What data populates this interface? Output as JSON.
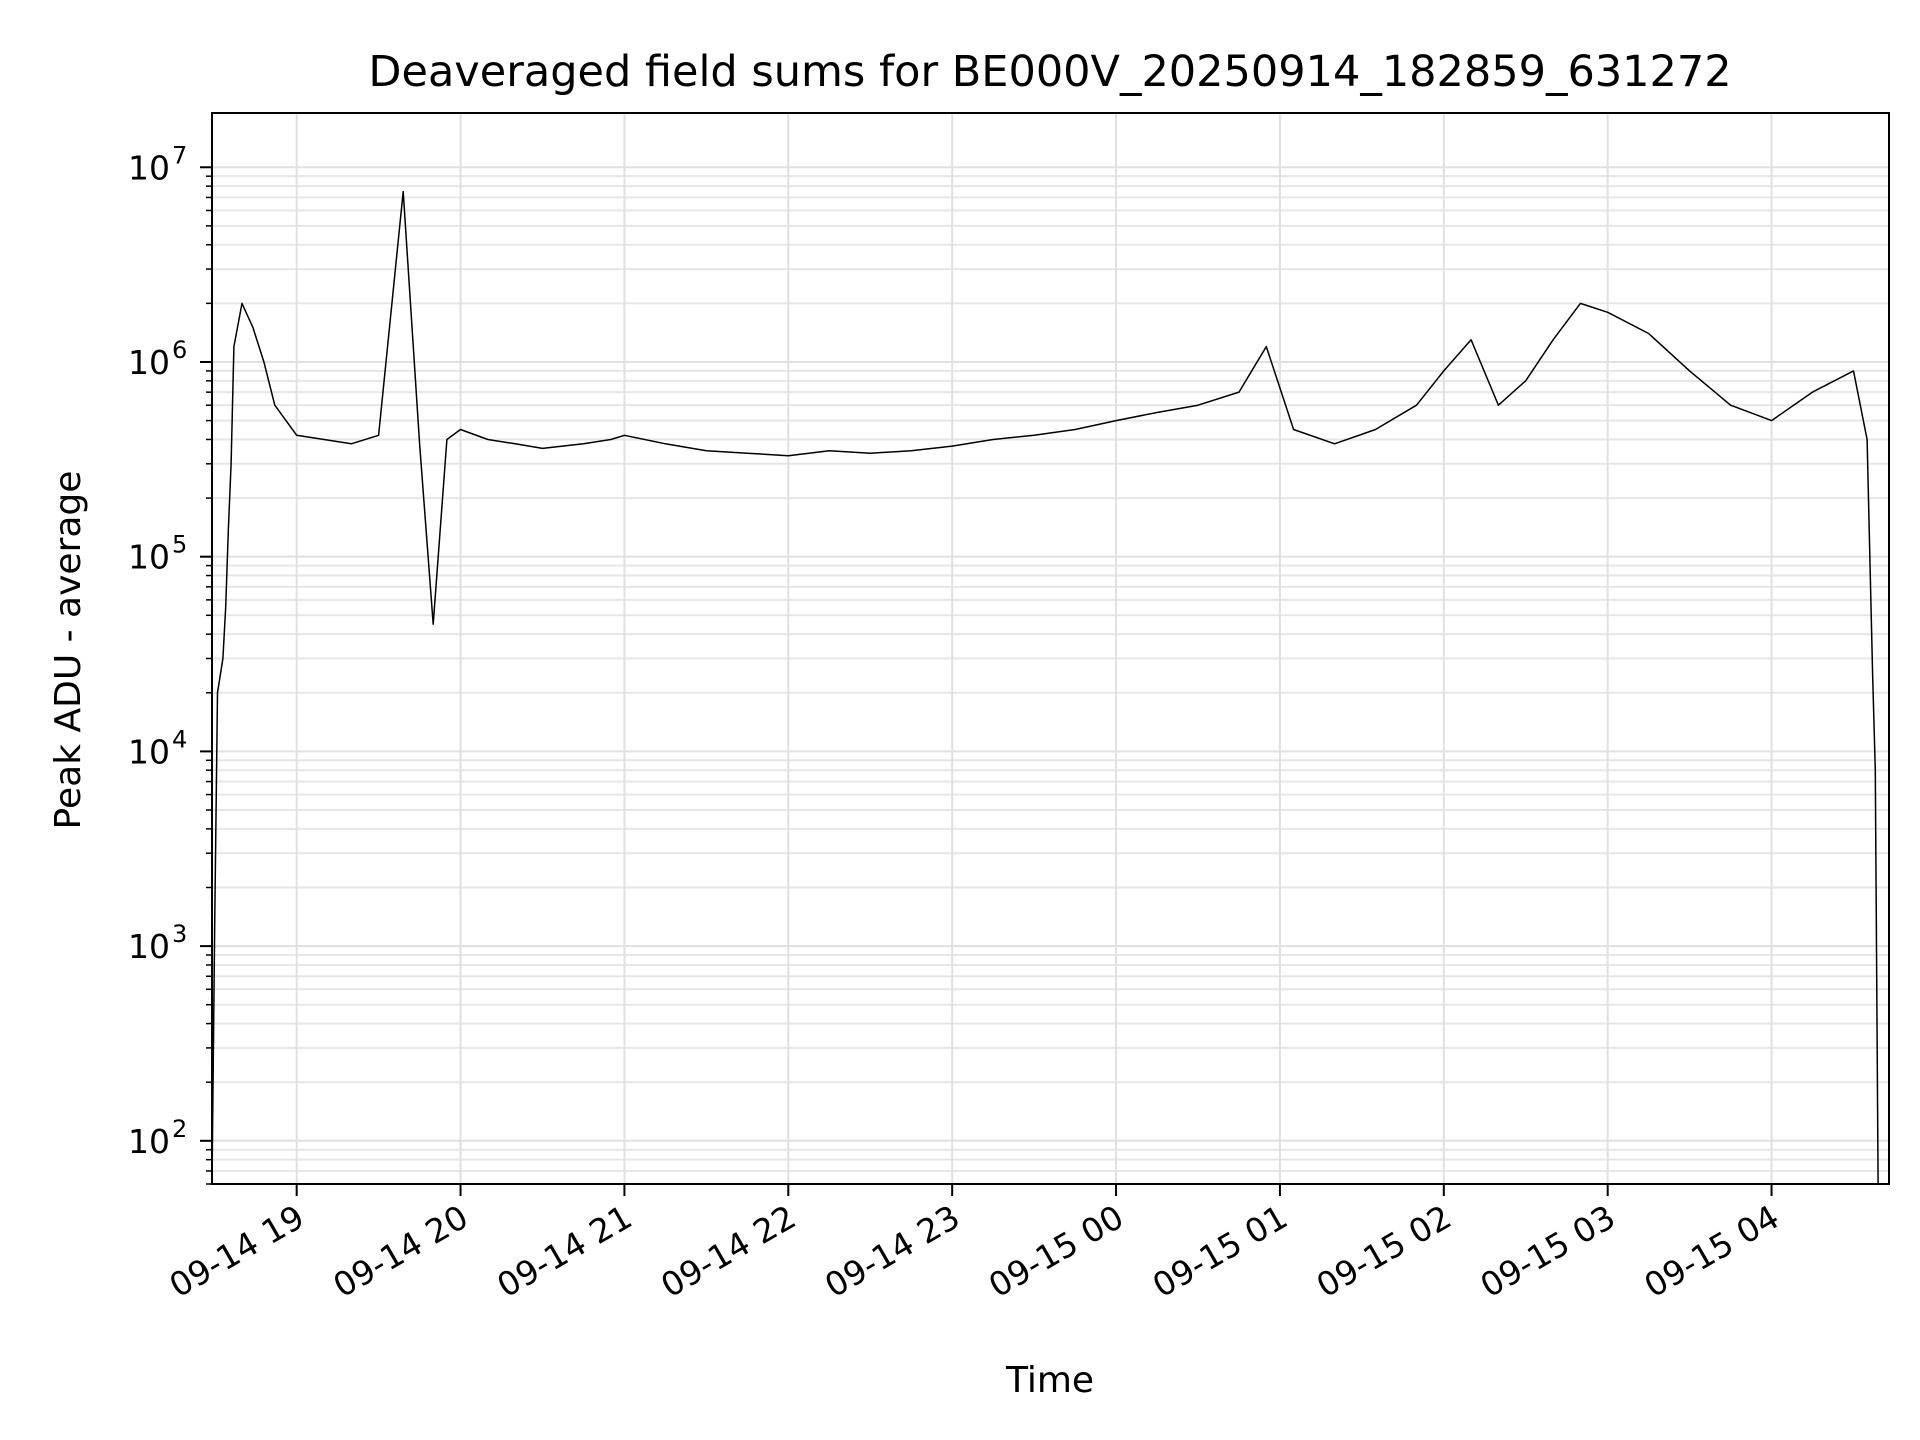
{
  "chart_data": {
    "type": "line",
    "title": "Deaveraged field sums for BE000V_20250914_182859_631272",
    "xlabel": "Time",
    "ylabel": "Peak ADU - average",
    "yscale": "log",
    "ylim": [
      60,
      19000000
    ],
    "xlim": [
      "2025-09-14 18:29",
      "2025-09-15 04:43"
    ],
    "grid": "major and minor",
    "x_ticks": [
      {
        "t": "2025-09-14 19:00",
        "label": "09-14 19"
      },
      {
        "t": "2025-09-14 20:00",
        "label": "09-14 20"
      },
      {
        "t": "2025-09-14 21:00",
        "label": "09-14 21"
      },
      {
        "t": "2025-09-14 22:00",
        "label": "09-14 22"
      },
      {
        "t": "2025-09-14 23:00",
        "label": "09-14 23"
      },
      {
        "t": "2025-09-15 00:00",
        "label": "09-15 00"
      },
      {
        "t": "2025-09-15 01:00",
        "label": "09-15 01"
      },
      {
        "t": "2025-09-15 02:00",
        "label": "09-15 02"
      },
      {
        "t": "2025-09-15 03:00",
        "label": "09-15 03"
      },
      {
        "t": "2025-09-15 04:00",
        "label": "09-15 04"
      }
    ],
    "y_ticks": [
      {
        "v": 100,
        "base": "10",
        "exp": "2"
      },
      {
        "v": 1000,
        "base": "10",
        "exp": "3"
      },
      {
        "v": 10000,
        "base": "10",
        "exp": "4"
      },
      {
        "v": 100000,
        "base": "10",
        "exp": "5"
      },
      {
        "v": 1000000,
        "base": "10",
        "exp": "6"
      },
      {
        "v": 10000000,
        "base": "10",
        "exp": "7"
      }
    ],
    "series": [
      {
        "color": "#000000",
        "points": [
          [
            "2025-09-14 18:29",
            60
          ],
          [
            "2025-09-14 18:30",
            1300
          ],
          [
            "2025-09-14 18:31",
            20000
          ],
          [
            "2025-09-14 18:33",
            30000
          ],
          [
            "2025-09-14 18:34",
            55000
          ],
          [
            "2025-09-14 18:35",
            140000
          ],
          [
            "2025-09-14 18:36",
            300000
          ],
          [
            "2025-09-14 18:37",
            1200000
          ],
          [
            "2025-09-14 18:40",
            2000000
          ],
          [
            "2025-09-14 18:44",
            1500000
          ],
          [
            "2025-09-14 18:48",
            1000000
          ],
          [
            "2025-09-14 18:52",
            600000
          ],
          [
            "2025-09-14 19:00",
            420000
          ],
          [
            "2025-09-14 19:10",
            400000
          ],
          [
            "2025-09-14 19:20",
            380000
          ],
          [
            "2025-09-14 19:30",
            420000
          ],
          [
            "2025-09-14 19:39",
            7500000
          ],
          [
            "2025-09-14 19:45",
            380000
          ],
          [
            "2025-09-14 19:50",
            45000
          ],
          [
            "2025-09-14 19:55",
            400000
          ],
          [
            "2025-09-14 20:00",
            450000
          ],
          [
            "2025-09-14 20:10",
            400000
          ],
          [
            "2025-09-14 20:20",
            380000
          ],
          [
            "2025-09-14 20:30",
            360000
          ],
          [
            "2025-09-14 20:45",
            380000
          ],
          [
            "2025-09-14 20:55",
            400000
          ],
          [
            "2025-09-14 21:00",
            420000
          ],
          [
            "2025-09-14 21:15",
            380000
          ],
          [
            "2025-09-14 21:30",
            350000
          ],
          [
            "2025-09-14 21:45",
            340000
          ],
          [
            "2025-09-14 22:00",
            330000
          ],
          [
            "2025-09-14 22:15",
            350000
          ],
          [
            "2025-09-14 22:30",
            340000
          ],
          [
            "2025-09-14 22:45",
            350000
          ],
          [
            "2025-09-14 23:00",
            370000
          ],
          [
            "2025-09-14 23:15",
            400000
          ],
          [
            "2025-09-14 23:30",
            420000
          ],
          [
            "2025-09-14 23:45",
            450000
          ],
          [
            "2025-09-15 00:00",
            500000
          ],
          [
            "2025-09-15 00:15",
            550000
          ],
          [
            "2025-09-15 00:30",
            600000
          ],
          [
            "2025-09-15 00:45",
            700000
          ],
          [
            "2025-09-15 00:55",
            1200000
          ],
          [
            "2025-09-15 01:05",
            450000
          ],
          [
            "2025-09-15 01:20",
            380000
          ],
          [
            "2025-09-15 01:35",
            450000
          ],
          [
            "2025-09-15 01:50",
            600000
          ],
          [
            "2025-09-15 02:00",
            900000
          ],
          [
            "2025-09-15 02:10",
            1300000
          ],
          [
            "2025-09-15 02:20",
            600000
          ],
          [
            "2025-09-15 02:30",
            800000
          ],
          [
            "2025-09-15 02:40",
            1300000
          ],
          [
            "2025-09-15 02:50",
            2000000
          ],
          [
            "2025-09-15 03:00",
            1800000
          ],
          [
            "2025-09-15 03:15",
            1400000
          ],
          [
            "2025-09-15 03:30",
            900000
          ],
          [
            "2025-09-15 03:45",
            600000
          ],
          [
            "2025-09-15 04:00",
            500000
          ],
          [
            "2025-09-15 04:15",
            700000
          ],
          [
            "2025-09-15 04:30",
            900000
          ],
          [
            "2025-09-15 04:35",
            400000
          ],
          [
            "2025-09-15 04:37",
            25000
          ],
          [
            "2025-09-15 04:38",
            8000
          ],
          [
            "2025-09-15 04:39",
            60
          ]
        ]
      }
    ]
  }
}
